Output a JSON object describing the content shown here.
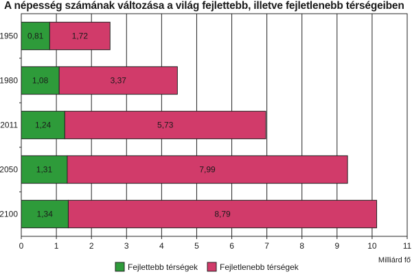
{
  "chart_data": {
    "type": "bar",
    "orientation": "horizontal",
    "stacked": true,
    "title": "A népesség számának változása a világ fejlettebb, illetve fejletlenebb térségeiben",
    "xlabel": "Milliárd fő",
    "ylabel": "",
    "categories": [
      "1950",
      "1980",
      "2011",
      "2050",
      "2100"
    ],
    "series": [
      {
        "name": "Fejlettebb térségek",
        "color": "#2e9b3a",
        "values": [
          0.81,
          1.08,
          1.24,
          1.31,
          1.34
        ],
        "labels": [
          "0,81",
          "1,08",
          "1,24",
          "1,31",
          "1,34"
        ]
      },
      {
        "name": "Fejletlenebb térségek",
        "color": "#d13b6a",
        "values": [
          1.72,
          3.37,
          5.73,
          7.99,
          8.79
        ],
        "labels": [
          "1,72",
          "3,37",
          "5,73",
          "7,99",
          "8,79"
        ]
      }
    ],
    "xlim": [
      0,
      11
    ],
    "xticks": [
      "0",
      "1",
      "2",
      "3",
      "4",
      "5",
      "6",
      "7",
      "8",
      "9",
      "10",
      "11"
    ],
    "grid": true,
    "legend_position": "bottom"
  }
}
